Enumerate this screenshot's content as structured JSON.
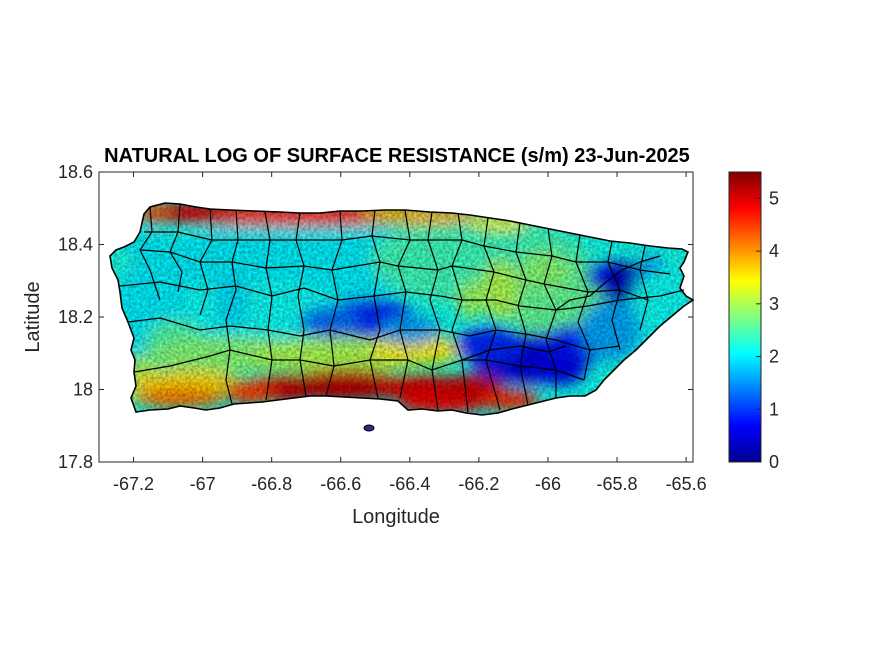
{
  "figure": {
    "title": "NATURAL LOG OF SURFACE RESISTANCE (s/m) 23-Jun-2025",
    "xlabel": "Longitude",
    "ylabel": "Latitude"
  },
  "map": {
    "region": "Puerto Rico",
    "xlim": [
      -67.3,
      -65.58
    ],
    "ylim": [
      17.8,
      18.6
    ],
    "xticks": [
      -67.2,
      -67,
      -66.8,
      -66.6,
      -66.4,
      -66.2,
      -66,
      -65.8,
      -65.6
    ],
    "xtick_labels": [
      "-67.2",
      "-67",
      "-66.8",
      "-66.6",
      "-66.4",
      "-66.2",
      "-66",
      "-65.8",
      "-65.6"
    ],
    "yticks": [
      17.8,
      18,
      18.2,
      18.4,
      18.6
    ],
    "ytick_labels": [
      "17.8",
      "18",
      "18.2",
      "18.4",
      "18.6"
    ],
    "colormap": "jet",
    "boundary_color": "#000000",
    "features": [
      {
        "name": "north-coast-high",
        "lon": [
          -67.15,
          -66.35
        ],
        "lat": 18.47,
        "value": 4.6
      },
      {
        "name": "south-coast-high",
        "lon": [
          -66.9,
          -66.1
        ],
        "lat": 17.99,
        "value": 5.0
      },
      {
        "name": "southwest-moderate",
        "lon": [
          -67.2,
          -66.95
        ],
        "lat": 18.02,
        "value": 3.6
      },
      {
        "name": "east-central-low",
        "lon": [
          -66.2,
          -65.95
        ],
        "lat": 18.11,
        "value": 0.3
      },
      {
        "name": "northeast-low",
        "lon": [
          -65.85,
          -65.75
        ],
        "lat": 18.28,
        "value": 0.4
      },
      {
        "name": "central-low",
        "lon": [
          -66.6,
          -66.45
        ],
        "lat": 18.18,
        "value": 0.9
      }
    ]
  },
  "colorbar": {
    "range": [
      0,
      5.5
    ],
    "ticks": [
      0,
      1,
      2,
      3,
      4,
      5
    ],
    "tick_labels": [
      "0",
      "1",
      "2",
      "3",
      "4",
      "5"
    ]
  },
  "colors": {
    "jet_dark_blue": "#00008f",
    "jet_blue": "#0000ff",
    "jet_cyan": "#00ffff",
    "jet_yellow": "#ffff00",
    "jet_red": "#ff0000",
    "jet_dark_red": "#800000"
  }
}
